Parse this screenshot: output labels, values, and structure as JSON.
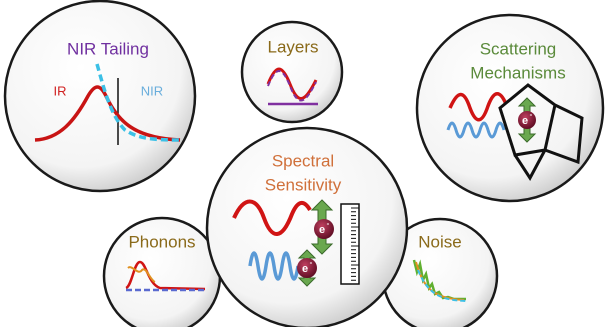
{
  "nodes": [
    {
      "label": "NIR Tailing",
      "regions": [
        "IR",
        "NIR"
      ]
    },
    {
      "label": "Layers"
    },
    {
      "label": [
        "Scattering",
        "Mechanisms"
      ]
    },
    {
      "label": [
        "Spectral",
        "Sensitivity"
      ]
    },
    {
      "label": "Phonons"
    },
    {
      "label": "Noise"
    }
  ],
  "electron": {
    "symbol": "e",
    "charge": "-"
  }
}
